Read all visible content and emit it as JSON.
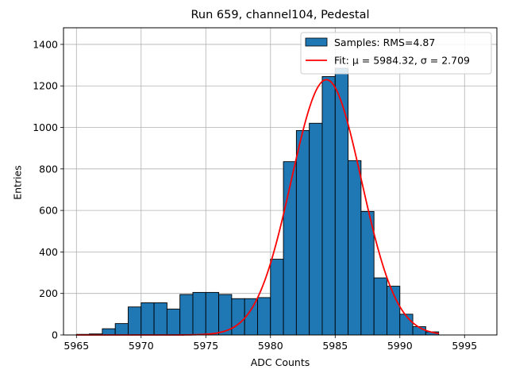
{
  "chart_data": {
    "type": "bar",
    "title": "Run 659, channel104, Pedestal",
    "xlabel": "ADC Counts",
    "ylabel": "Entries",
    "xlim": [
      5964,
      5997.5
    ],
    "ylim": [
      0,
      1480
    ],
    "xticks": [
      5965,
      5970,
      5975,
      5980,
      5985,
      5990,
      5995
    ],
    "yticks": [
      0,
      200,
      400,
      600,
      800,
      1000,
      1200,
      1400
    ],
    "grid": true,
    "legend_position": "top-right",
    "bar_color": "#1f77b4",
    "fit_color": "#ff0000",
    "histogram": {
      "name": "Samples: RMS=4.87",
      "bin_edges": [
        5965,
        5966,
        5967,
        5968,
        5969,
        5970,
        5971,
        5972,
        5973,
        5974,
        5975,
        5976,
        5977,
        5978,
        5979,
        5980,
        5981,
        5982,
        5983,
        5984,
        5985,
        5986,
        5987,
        5988,
        5989,
        5990,
        5991,
        5992,
        5993
      ],
      "counts": [
        3,
        5,
        30,
        55,
        135,
        155,
        155,
        125,
        195,
        205,
        205,
        195,
        175,
        175,
        180,
        365,
        835,
        985,
        1020,
        1245,
        1285,
        840,
        595,
        275,
        235,
        100,
        40,
        15
      ]
    },
    "fit": {
      "name": "Fit: μ = 5984.32, σ = 2.709",
      "mu": 5984.32,
      "sigma": 2.709,
      "amplitude": 1230,
      "x_range": [
        5965,
        5993
      ]
    }
  }
}
